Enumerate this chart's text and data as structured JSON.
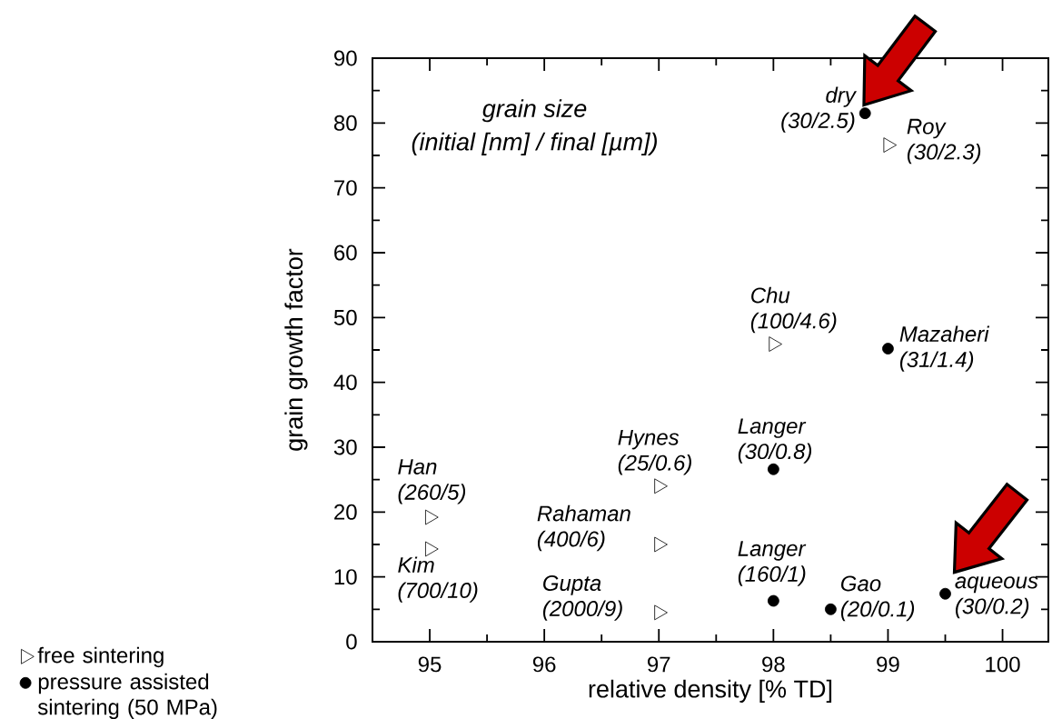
{
  "chart_data": {
    "type": "scatter",
    "xlabel": "relative density [% TD]",
    "ylabel": "grain growth factor",
    "xlim": [
      94.5,
      100.4
    ],
    "ylim": [
      0,
      90
    ],
    "xticks": [
      95,
      96,
      97,
      98,
      99,
      100
    ],
    "yticks": [
      0,
      10,
      20,
      30,
      40,
      50,
      60,
      70,
      80,
      90
    ],
    "grid": false,
    "legend": "bottom left",
    "series": [
      {
        "name": "free sintering",
        "color": "#000000",
        "marker": "triangle",
        "x": [
          99,
          98,
          97,
          97,
          97,
          95,
          95
        ],
        "values": [
          76.6,
          45.9,
          24.0,
          15.0,
          4.5,
          19.2,
          14.3
        ]
      },
      {
        "name": "pressure assisted sintering (50 MPa)",
        "color": "#000000",
        "marker": "circle",
        "x": [
          98.8,
          99,
          98,
          98,
          98.5,
          99.5
        ],
        "values": [
          81.5,
          45.2,
          26.6,
          6.3,
          5.0,
          7.4
        ]
      }
    ],
    "annotations": [
      "grain size",
      "(initial [nm] / final [µm])",
      {
        "text": "dry (30/2.5)",
        "x": 98.8,
        "y": 81.5
      },
      {
        "text": "Roy (30/2.3)",
        "x": 99,
        "y": 76.6
      },
      {
        "text": "Chu (100/4.6)",
        "x": 98,
        "y": 45.9
      },
      {
        "text": "Mazaheri (31/1.4)",
        "x": 99,
        "y": 45.2
      },
      {
        "text": "Hynes (25/0.6)",
        "x": 97,
        "y": 24.0
      },
      {
        "text": "Rahaman (400/6)",
        "x": 97,
        "y": 15.0
      },
      {
        "text": "Gupta (2000/9)",
        "x": 97,
        "y": 4.5
      },
      {
        "text": "Han (260/5)",
        "x": 95,
        "y": 19.2
      },
      {
        "text": "Kim (700/10)",
        "x": 95,
        "y": 14.3
      },
      {
        "text": "Langer (30/0.8)",
        "x": 98,
        "y": 26.6
      },
      {
        "text": "Langer (160/1)",
        "x": 98,
        "y": 6.3
      },
      {
        "text": "Gao (20/0.1)",
        "x": 98.5,
        "y": 5.0
      },
      {
        "text": "aqueous (30/0.2)",
        "x": 99.5,
        "y": 7.4
      }
    ]
  }
}
